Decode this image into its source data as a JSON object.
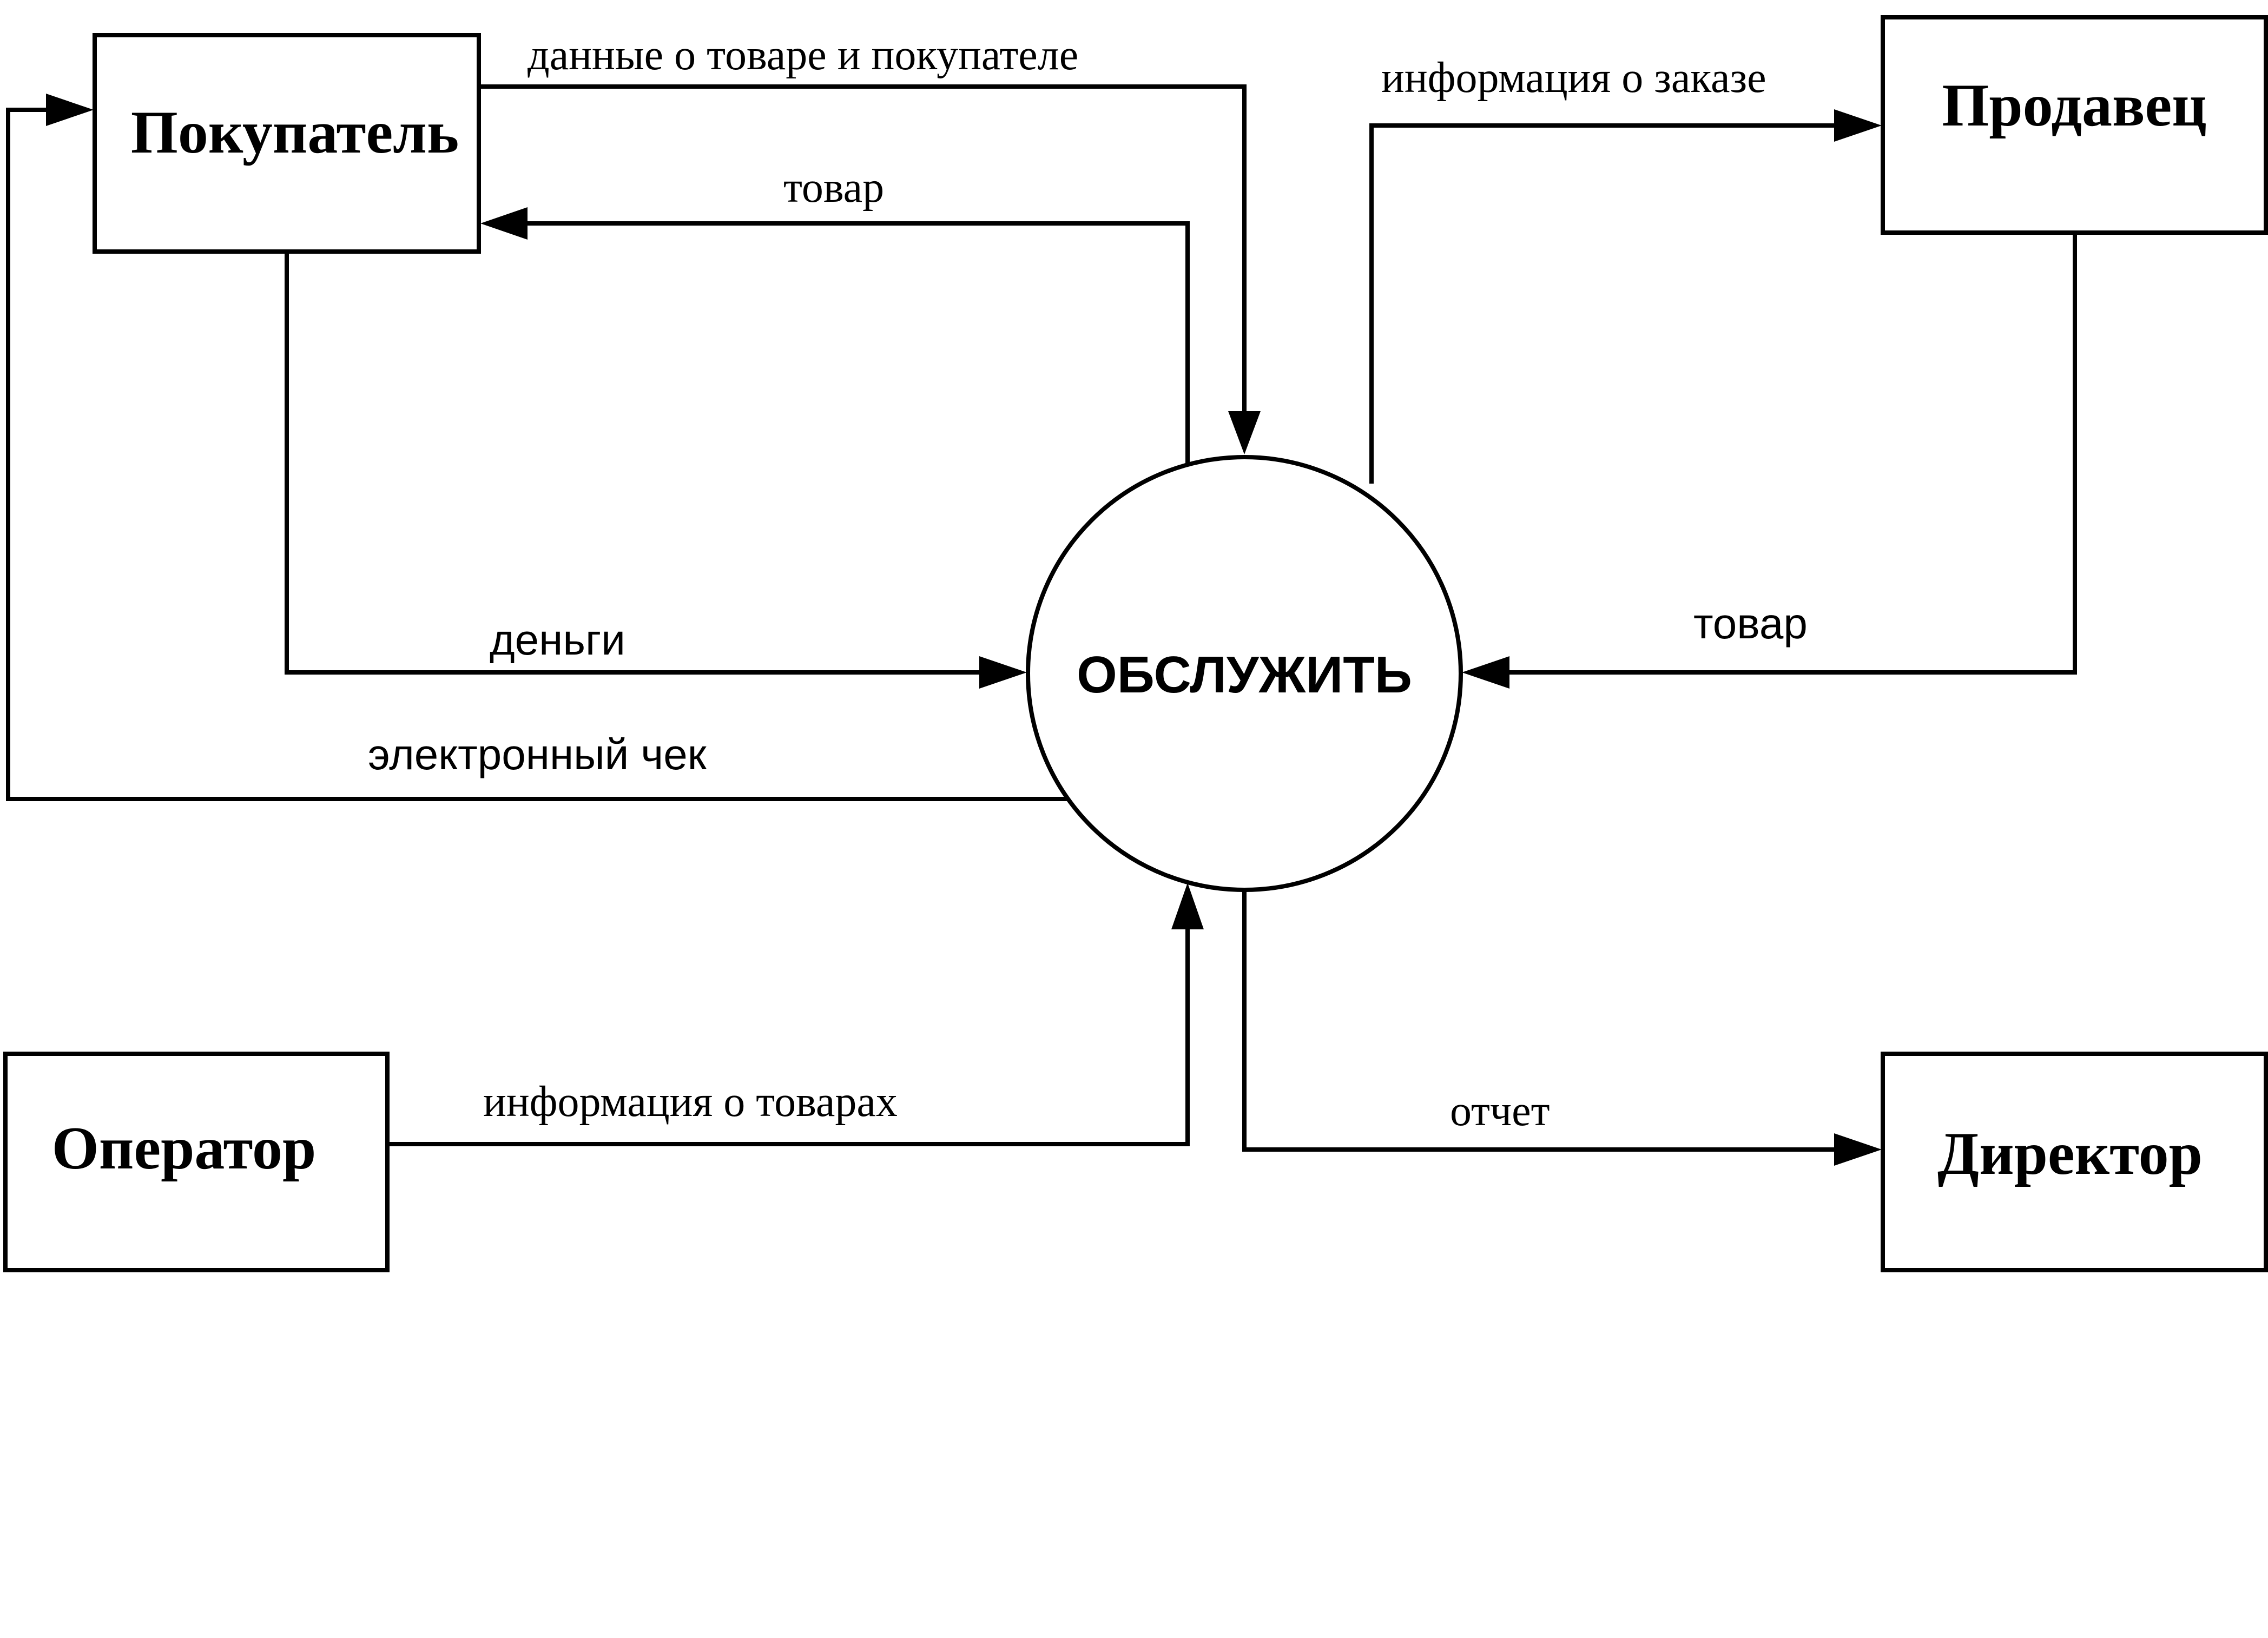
{
  "diagram": {
    "process": {
      "label": "ОБСЛУЖИТЬ"
    },
    "entities": {
      "buyer": "Покупатель",
      "seller": "Продавец",
      "operator": "Оператор",
      "director": "Директор"
    },
    "flows": {
      "buyer_data": "данные о товаре и покупателе",
      "goods_to_buyer": "товар",
      "order_info": "информация о заказе",
      "money": "деньги",
      "goods_from_seller": "товар",
      "e_receipt": "электронный чек",
      "goods_info": "информация о товарах",
      "report": "отчет"
    }
  }
}
